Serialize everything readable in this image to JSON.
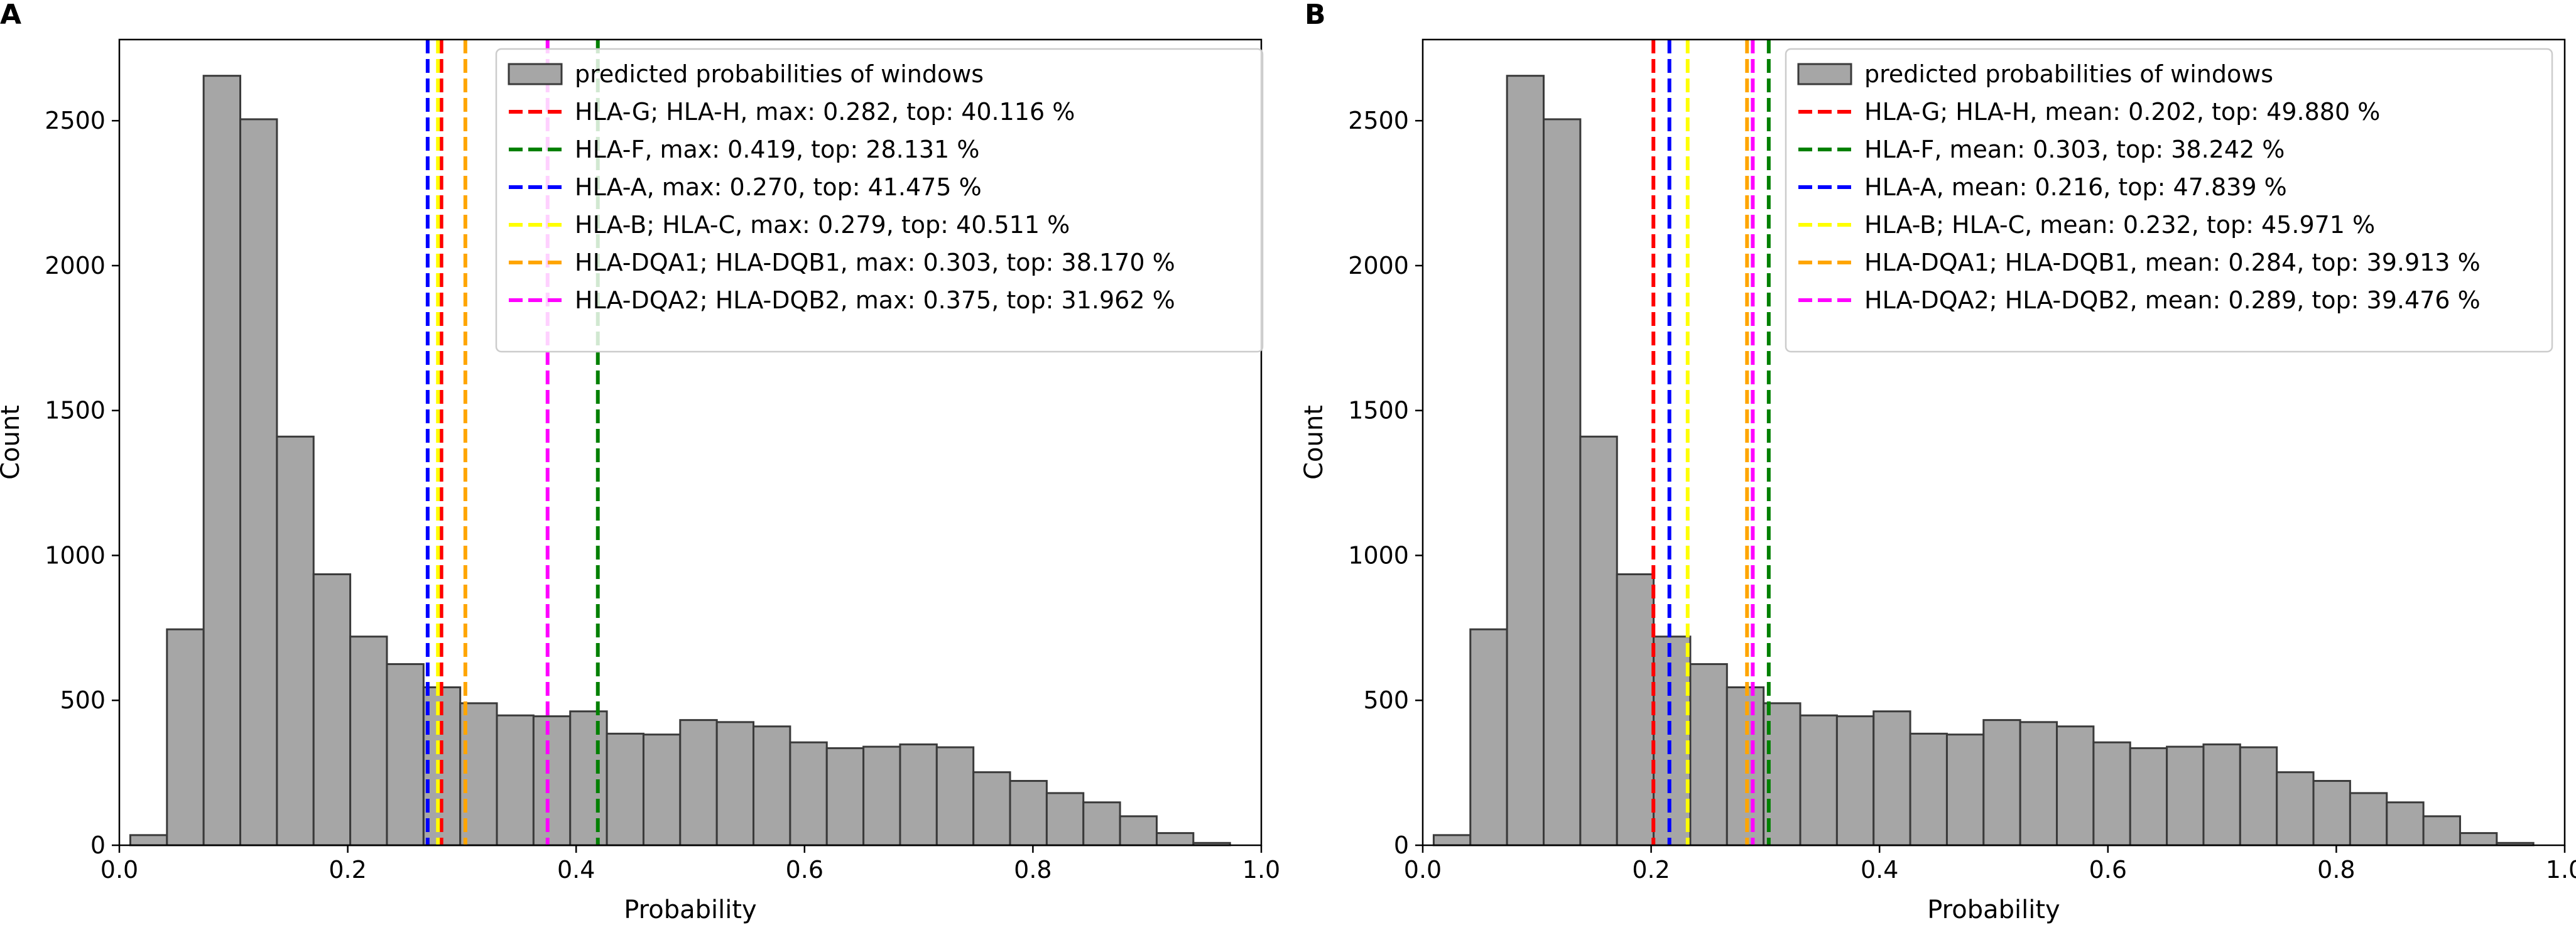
{
  "chart_data": [
    {
      "panel_label": "A",
      "type": "bar",
      "xlabel": "Probability",
      "ylabel": "Count",
      "xlim": [
        0.0,
        1.0
      ],
      "ylim": [
        0,
        2780
      ],
      "xticks": [
        0.0,
        0.2,
        0.4,
        0.6,
        0.8,
        1.0
      ],
      "xtick_labels": [
        "0.0",
        "0.2",
        "0.4",
        "0.6",
        "0.8",
        "1.0"
      ],
      "yticks": [
        0,
        500,
        1000,
        1500,
        2000,
        2500
      ],
      "ytick_labels": [
        "0",
        "500",
        "1000",
        "1500",
        "2000",
        "2500"
      ],
      "legend_position": "top-right",
      "histogram": {
        "name": "predicted probabilities of windows",
        "color": "#a6a6a6",
        "edge_color": "#3a3a3a",
        "bin_edges": [
          0.0096,
          0.0417,
          0.0738,
          0.1059,
          0.138,
          0.1701,
          0.2022,
          0.2343,
          0.2664,
          0.2985,
          0.3306,
          0.3627,
          0.3948,
          0.4269,
          0.459,
          0.4911,
          0.5232,
          0.5553,
          0.5874,
          0.6195,
          0.6516,
          0.6837,
          0.7158,
          0.7479,
          0.78,
          0.8121,
          0.8442,
          0.8763,
          0.9084,
          0.9405,
          0.9726
        ],
        "counts": [
          35,
          745,
          2655,
          2505,
          1410,
          935,
          720,
          625,
          545,
          490,
          448,
          445,
          462,
          385,
          382,
          432,
          425,
          410,
          355,
          335,
          340,
          348,
          338,
          252,
          222,
          180,
          148,
          100,
          42,
          8
        ]
      },
      "vlines": [
        {
          "label": "HLA-G; HLA-H, max: 0.282, top: 40.116 %",
          "x": 0.282,
          "color": "#ff0000"
        },
        {
          "label": "HLA-F, max: 0.419, top: 28.131 %",
          "x": 0.419,
          "color": "#008000"
        },
        {
          "label": "HLA-A, max: 0.270, top: 41.475 %",
          "x": 0.27,
          "color": "#0000ff"
        },
        {
          "label": "HLA-B; HLA-C, max: 0.279, top: 40.511 %",
          "x": 0.279,
          "color": "#ffff00"
        },
        {
          "label": "HLA-DQA1; HLA-DQB1, max: 0.303, top: 38.170 %",
          "x": 0.303,
          "color": "#ffa500"
        },
        {
          "label": "HLA-DQA2; HLA-DQB2, max: 0.375, top: 31.962 %",
          "x": 0.375,
          "color": "#ff00ff"
        }
      ]
    },
    {
      "panel_label": "B",
      "type": "bar",
      "xlabel": "Probability",
      "ylabel": "Count",
      "xlim": [
        0.0,
        1.0
      ],
      "ylim": [
        0,
        2780
      ],
      "xticks": [
        0.0,
        0.2,
        0.4,
        0.6,
        0.8,
        1.0
      ],
      "xtick_labels": [
        "0.0",
        "0.2",
        "0.4",
        "0.6",
        "0.8",
        "1.0"
      ],
      "yticks": [
        0,
        500,
        1000,
        1500,
        2000,
        2500
      ],
      "ytick_labels": [
        "0",
        "500",
        "1000",
        "1500",
        "2000",
        "2500"
      ],
      "legend_position": "top-right",
      "histogram": {
        "name": "predicted probabilities of windows",
        "color": "#a6a6a6",
        "edge_color": "#3a3a3a",
        "bin_edges": [
          0.0096,
          0.0417,
          0.0738,
          0.1059,
          0.138,
          0.1701,
          0.2022,
          0.2343,
          0.2664,
          0.2985,
          0.3306,
          0.3627,
          0.3948,
          0.4269,
          0.459,
          0.4911,
          0.5232,
          0.5553,
          0.5874,
          0.6195,
          0.6516,
          0.6837,
          0.7158,
          0.7479,
          0.78,
          0.8121,
          0.8442,
          0.8763,
          0.9084,
          0.9405,
          0.9726
        ],
        "counts": [
          35,
          745,
          2655,
          2505,
          1410,
          935,
          720,
          625,
          545,
          490,
          448,
          445,
          462,
          385,
          382,
          432,
          425,
          410,
          355,
          335,
          340,
          348,
          338,
          252,
          222,
          180,
          148,
          100,
          42,
          8
        ]
      },
      "vlines": [
        {
          "label": "HLA-G; HLA-H, mean: 0.202, top: 49.880 %",
          "x": 0.202,
          "color": "#ff0000"
        },
        {
          "label": "HLA-F, mean: 0.303, top: 38.242 %",
          "x": 0.303,
          "color": "#008000"
        },
        {
          "label": "HLA-A, mean: 0.216, top: 47.839 %",
          "x": 0.216,
          "color": "#0000ff"
        },
        {
          "label": "HLA-B; HLA-C, mean: 0.232, top: 45.971 %",
          "x": 0.232,
          "color": "#ffff00"
        },
        {
          "label": "HLA-DQA1; HLA-DQB1, mean: 0.284, top: 39.913 %",
          "x": 0.284,
          "color": "#ffa500"
        },
        {
          "label": "HLA-DQA2; HLA-DQB2, mean: 0.289, top: 39.476 %",
          "x": 0.289,
          "color": "#ff00ff"
        }
      ]
    }
  ]
}
